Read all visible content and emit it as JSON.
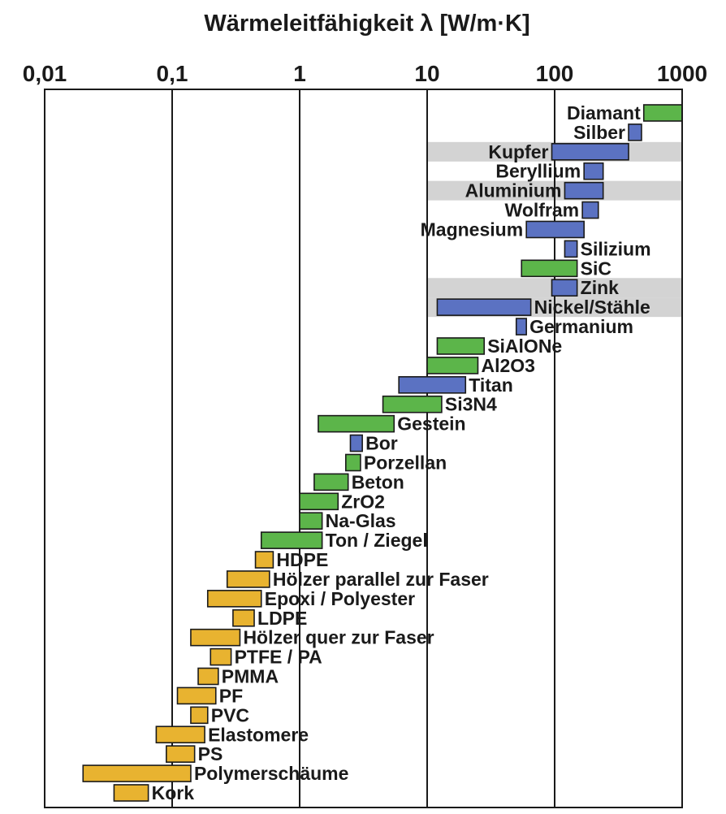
{
  "chart_data": {
    "type": "bar",
    "orientation": "horizontal-range",
    "title": "Wärmeleitfähigkeit λ [W/m·K]",
    "xscale": "log",
    "xlim": [
      0.01,
      1000
    ],
    "xticks": [
      "0,01",
      "0,1",
      "1",
      "10",
      "100",
      "1000"
    ],
    "grid": true,
    "colors": {
      "green": "#5cb54a",
      "blue": "#5b72c2",
      "orange": "#e8b330",
      "highlight": "#d3d3d3"
    },
    "series": [
      {
        "name": "Diamant",
        "min": 500,
        "max": 1000,
        "color": "green",
        "label_side": "left"
      },
      {
        "name": "Silber",
        "min": 380,
        "max": 480,
        "color": "blue",
        "label_side": "left"
      },
      {
        "name": "Kupfer",
        "min": 95,
        "max": 380,
        "color": "blue",
        "label_side": "left",
        "highlight": true
      },
      {
        "name": "Beryllium",
        "min": 170,
        "max": 240,
        "color": "blue",
        "label_side": "left"
      },
      {
        "name": "Aluminium",
        "min": 120,
        "max": 240,
        "color": "blue",
        "label_side": "left",
        "highlight": true
      },
      {
        "name": "Wolfram",
        "min": 165,
        "max": 220,
        "color": "blue",
        "label_side": "left"
      },
      {
        "name": "Magnesium",
        "min": 60,
        "max": 170,
        "color": "blue",
        "label_side": "left"
      },
      {
        "name": "Silizium",
        "min": 120,
        "max": 150,
        "color": "blue",
        "label_side": "right"
      },
      {
        "name": "SiC",
        "min": 55,
        "max": 150,
        "color": "green",
        "label_side": "right"
      },
      {
        "name": "Zink",
        "min": 95,
        "max": 150,
        "color": "blue",
        "label_side": "right",
        "highlight": true
      },
      {
        "name": "Nickel/Stähle",
        "min": 12,
        "max": 65,
        "color": "blue",
        "label_side": "right",
        "highlight": true
      },
      {
        "name": "Germanium",
        "min": 50,
        "max": 60,
        "color": "blue",
        "label_side": "right"
      },
      {
        "name": "SiAlONe",
        "min": 12,
        "max": 28,
        "color": "green",
        "label_side": "right"
      },
      {
        "name": "Al2O3",
        "min": 10,
        "max": 25,
        "color": "green",
        "label_side": "right"
      },
      {
        "name": "Titan",
        "min": 6,
        "max": 20,
        "color": "blue",
        "label_side": "right"
      },
      {
        "name": "Si3N4",
        "min": 4.5,
        "max": 13,
        "color": "green",
        "label_side": "right"
      },
      {
        "name": "Gestein",
        "min": 1.4,
        "max": 5.5,
        "color": "green",
        "label_side": "right"
      },
      {
        "name": "Bor",
        "min": 2.5,
        "max": 3.1,
        "color": "blue",
        "label_side": "right"
      },
      {
        "name": "Porzellan",
        "min": 2.3,
        "max": 3.0,
        "color": "green",
        "label_side": "right"
      },
      {
        "name": "Beton",
        "min": 1.3,
        "max": 2.4,
        "color": "green",
        "label_side": "right"
      },
      {
        "name": "ZrO2",
        "min": 1.0,
        "max": 2.0,
        "color": "green",
        "label_side": "right"
      },
      {
        "name": "Na-Glas",
        "min": 1.0,
        "max": 1.5,
        "color": "green",
        "label_side": "right"
      },
      {
        "name": "Ton / Ziegel",
        "min": 0.5,
        "max": 1.5,
        "color": "green",
        "label_side": "right"
      },
      {
        "name": "HDPE",
        "min": 0.45,
        "max": 0.62,
        "color": "orange",
        "label_side": "right"
      },
      {
        "name": "Hölzer parallel zur Faser",
        "min": 0.27,
        "max": 0.58,
        "color": "orange",
        "label_side": "right"
      },
      {
        "name": "Epoxi / Polyester",
        "min": 0.19,
        "max": 0.5,
        "color": "orange",
        "label_side": "right"
      },
      {
        "name": "LDPE",
        "min": 0.3,
        "max": 0.44,
        "color": "orange",
        "label_side": "right"
      },
      {
        "name": "Hölzer quer zur Faser",
        "min": 0.14,
        "max": 0.34,
        "color": "orange",
        "label_side": "right"
      },
      {
        "name": "PTFE / PA",
        "min": 0.2,
        "max": 0.29,
        "color": "orange",
        "label_side": "right"
      },
      {
        "name": "PMMA",
        "min": 0.16,
        "max": 0.23,
        "color": "orange",
        "label_side": "right"
      },
      {
        "name": "PF",
        "min": 0.11,
        "max": 0.22,
        "color": "orange",
        "label_side": "right"
      },
      {
        "name": "PVC",
        "min": 0.14,
        "max": 0.19,
        "color": "orange",
        "label_side": "right"
      },
      {
        "name": "Elastomere",
        "min": 0.075,
        "max": 0.18,
        "color": "orange",
        "label_side": "right"
      },
      {
        "name": "PS",
        "min": 0.09,
        "max": 0.15,
        "color": "orange",
        "label_side": "right"
      },
      {
        "name": "Polymerschäume",
        "min": 0.02,
        "max": 0.14,
        "color": "orange",
        "label_side": "right"
      },
      {
        "name": "Kork",
        "min": 0.035,
        "max": 0.065,
        "color": "orange",
        "label_side": "right"
      }
    ]
  }
}
